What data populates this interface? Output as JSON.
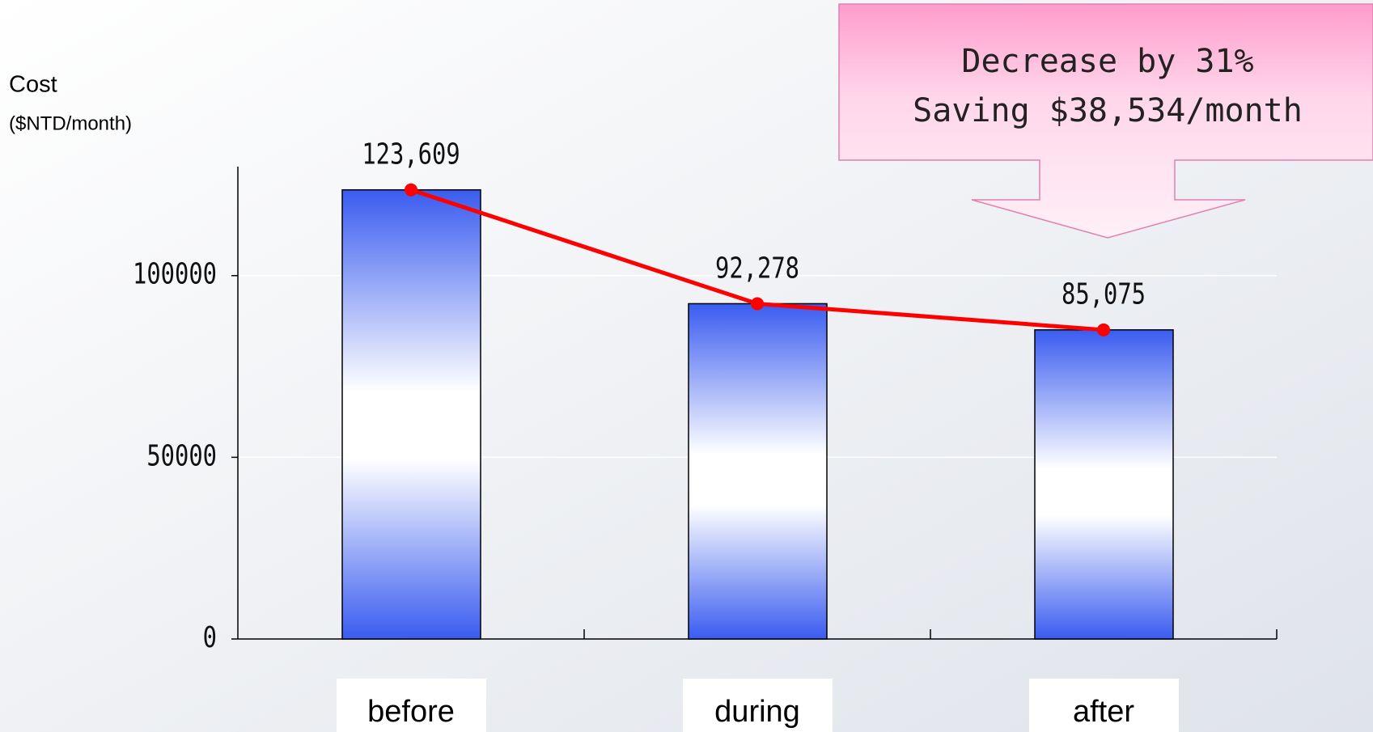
{
  "chart_data": {
    "type": "bar",
    "axis_title": "Cost",
    "axis_unit": "($NTD/month)",
    "annotation": [
      "Decrease by 31%",
      "Saving $38,534/month"
    ],
    "categories": [
      "before",
      "during",
      "after"
    ],
    "values": [
      123609,
      92278,
      85075
    ],
    "value_labels": [
      "123,609",
      "92,278",
      "85,075"
    ],
    "color": "#3a5cf0",
    "line_color": "#ff0000",
    "ylim": [
      0,
      130000
    ],
    "yticks": [
      0,
      50000,
      100000
    ],
    "grid": true
  }
}
